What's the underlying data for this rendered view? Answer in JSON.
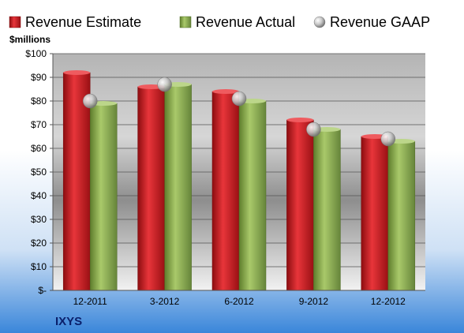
{
  "company": "IXYS",
  "unit_label": "$millions",
  "legend": [
    {
      "name": "Revenue Estimate",
      "icon": "red-square-icon"
    },
    {
      "name": "Revenue Actual",
      "icon": "green-square-icon"
    },
    {
      "name": "Revenue GAAP",
      "icon": "gray-sphere-icon"
    }
  ],
  "colors": {
    "estimate": "#c8141c",
    "actual": "#8aad4a",
    "gaap": "#b8b8b8",
    "company_text": "#0a1f6b"
  },
  "chart_data": {
    "type": "bar",
    "categories": [
      "12-2011",
      "3-2012",
      "6-2012",
      "9-2012",
      "12-2012"
    ],
    "series": [
      {
        "name": "Revenue Estimate",
        "values": [
          92,
          86,
          84,
          72,
          65
        ]
      },
      {
        "name": "Revenue Actual",
        "values": [
          79,
          87,
          80,
          68,
          63
        ]
      },
      {
        "name": "Revenue GAAP",
        "values": [
          80,
          87,
          81,
          68,
          64
        ]
      }
    ],
    "ylabel": "$millions",
    "ylim": [
      0,
      100
    ],
    "yticks": [
      0,
      10,
      20,
      30,
      40,
      50,
      60,
      70,
      80,
      90,
      100
    ],
    "ytick_labels": [
      "$-",
      "$10",
      "$20",
      "$30",
      "$40",
      "$50",
      "$60",
      "$70",
      "$80",
      "$90",
      "$100"
    ],
    "grid": true,
    "legend_position": "top"
  }
}
